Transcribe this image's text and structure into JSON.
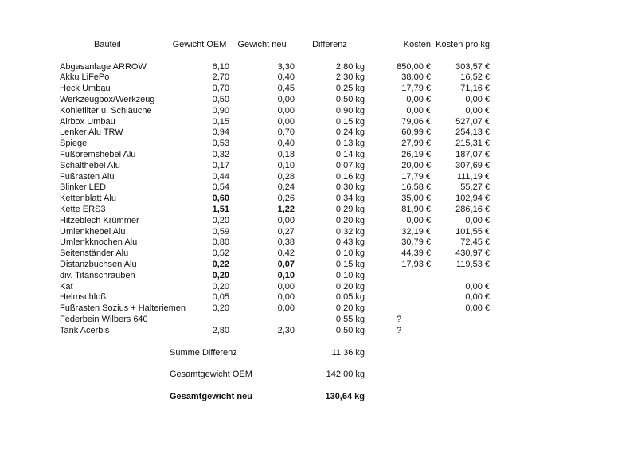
{
  "document": {
    "background": "#ffffff",
    "text_color": "#111111"
  },
  "table": {
    "headers": {
      "bauteil": "Bauteil",
      "gewicht_oem": "Gewicht OEM",
      "gewicht_neu": "Gewicht neu",
      "differenz": "Differenz",
      "kosten": "Kosten",
      "kosten_pro_kg": "Kosten pro kg"
    },
    "columns": [
      "bauteil",
      "gewicht_oem",
      "gewicht_neu",
      "differenz",
      "kosten",
      "kosten_pro_kg"
    ],
    "rows": [
      {
        "bauteil": "Abgasanlage ARROW",
        "gewicht_oem": "6,10",
        "gewicht_neu": "3,30",
        "differenz": "2,80 kg",
        "kosten": "850,00 €",
        "kosten_pro_kg": "303,57 €"
      },
      {
        "bauteil": "Akku LiFePo",
        "gewicht_oem": "2,70",
        "gewicht_neu": "0,40",
        "differenz": "2,30 kg",
        "kosten": "38,00 €",
        "kosten_pro_kg": "16,52 €"
      },
      {
        "bauteil": "Heck Umbau",
        "gewicht_oem": "0,70",
        "gewicht_neu": "0,45",
        "differenz": "0,25 kg",
        "kosten": "17,79 €",
        "kosten_pro_kg": "71,16 €"
      },
      {
        "bauteil": "Werkzeugbox/Werkzeug",
        "gewicht_oem": "0,50",
        "gewicht_neu": "0,00",
        "differenz": "0,50 kg",
        "kosten": "0,00 €",
        "kosten_pro_kg": "0,00 €"
      },
      {
        "bauteil": "Kohlefilter u. Schläuche",
        "gewicht_oem": "0,90",
        "gewicht_neu": "0,00",
        "differenz": "0,90 kg",
        "kosten": "0,00 €",
        "kosten_pro_kg": "0,00 €"
      },
      {
        "bauteil": "Airbox Umbau",
        "gewicht_oem": "0,15",
        "gewicht_neu": "0,00",
        "differenz": "0,15 kg",
        "kosten": "79,06 €",
        "kosten_pro_kg": "527,07 €"
      },
      {
        "bauteil": "Lenker Alu TRW",
        "gewicht_oem": "0,94",
        "gewicht_neu": "0,70",
        "differenz": "0,24 kg",
        "kosten": "60,99 €",
        "kosten_pro_kg": "254,13 €"
      },
      {
        "bauteil": "Spiegel",
        "gewicht_oem": "0,53",
        "gewicht_neu": "0,40",
        "differenz": "0,13 kg",
        "kosten": "27,99 €",
        "kosten_pro_kg": "215,31 €"
      },
      {
        "bauteil": "Fußbremshebel Alu",
        "gewicht_oem": "0,32",
        "gewicht_neu": "0,18",
        "differenz": "0,14 kg",
        "kosten": "26,19 €",
        "kosten_pro_kg": "187,07 €"
      },
      {
        "bauteil": "Schalthebel Alu",
        "gewicht_oem": "0,17",
        "gewicht_neu": "0,10",
        "differenz": "0,07 kg",
        "kosten": "20,00 €",
        "kosten_pro_kg": "307,69 €"
      },
      {
        "bauteil": "Fußrasten Alu",
        "gewicht_oem": "0,44",
        "gewicht_neu": "0,28",
        "differenz": "0,16 kg",
        "kosten": "17,79 €",
        "kosten_pro_kg": "111,19 €"
      },
      {
        "bauteil": "Blinker LED",
        "gewicht_oem": "0,54",
        "gewicht_neu": "0,24",
        "differenz": "0,30 kg",
        "kosten": "16,58 €",
        "kosten_pro_kg": "55,27 €"
      },
      {
        "bauteil": "Kettenblatt Alu",
        "gewicht_oem": "0,60",
        "gewicht_neu": "0,26",
        "differenz": "0,34 kg",
        "kosten": "35,00 €",
        "kosten_pro_kg": "102,94 €",
        "bold": [
          "gewicht_oem"
        ]
      },
      {
        "bauteil": "Kette ERS3",
        "gewicht_oem": "1,51",
        "gewicht_neu": "1,22",
        "differenz": "0,29 kg",
        "kosten": "81,90 €",
        "kosten_pro_kg": "286,16 €",
        "bold": [
          "gewicht_oem",
          "gewicht_neu"
        ]
      },
      {
        "bauteil": "Hitzeblech Krümmer",
        "gewicht_oem": "0,20",
        "gewicht_neu": "0,00",
        "differenz": "0,20 kg",
        "kosten": "0,00 €",
        "kosten_pro_kg": "0,00 €"
      },
      {
        "bauteil": "Umlenkhebel Alu",
        "gewicht_oem": "0,59",
        "gewicht_neu": "0,27",
        "differenz": "0,32 kg",
        "kosten": "32,19 €",
        "kosten_pro_kg": "101,55 €"
      },
      {
        "bauteil": "Umlenkknochen Alu",
        "gewicht_oem": "0,80",
        "gewicht_neu": "0,38",
        "differenz": "0,43 kg",
        "kosten": "30,79 €",
        "kosten_pro_kg": "72,45 €"
      },
      {
        "bauteil": "Seitenständer Alu",
        "gewicht_oem": "0,52",
        "gewicht_neu": "0,42",
        "differenz": "0,10 kg",
        "kosten": "44,39 €",
        "kosten_pro_kg": "430,97 €"
      },
      {
        "bauteil": "Distanzbuchsen Alu",
        "gewicht_oem": "0,22",
        "gewicht_neu": "0,07",
        "differenz": "0,15 kg",
        "kosten": "17,93 €",
        "kosten_pro_kg": "119,53 €",
        "bold": [
          "gewicht_oem",
          "gewicht_neu"
        ]
      },
      {
        "bauteil": "div. Titanschrauben",
        "gewicht_oem": "0,20",
        "gewicht_neu": "0,10",
        "differenz": "0,10 kg",
        "kosten": "",
        "kosten_pro_kg": "",
        "bold": [
          "gewicht_oem",
          "gewicht_neu"
        ]
      },
      {
        "bauteil": "Kat",
        "gewicht_oem": "0,20",
        "gewicht_neu": "0,00",
        "differenz": "0,20 kg",
        "kosten": "",
        "kosten_pro_kg": "0,00 €"
      },
      {
        "bauteil": "Helmschloß",
        "gewicht_oem": "0,05",
        "gewicht_neu": "0,00",
        "differenz": "0,05 kg",
        "kosten": "",
        "kosten_pro_kg": "0,00 €"
      },
      {
        "bauteil": "Fußrasten Sozius + Halteriemen",
        "gewicht_oem": "0,20",
        "gewicht_neu": "0,00",
        "differenz": "0,20 kg",
        "kosten": "",
        "kosten_pro_kg": "0,00 €"
      },
      {
        "bauteil": "Federbein Wilbers 640",
        "gewicht_oem": "",
        "gewicht_neu": "",
        "differenz": "0,55 kg",
        "kosten": "?",
        "kosten_pro_kg": ""
      },
      {
        "bauteil": "Tank Acerbis",
        "gewicht_oem": "2,80",
        "gewicht_neu": "2,30",
        "differenz": "0,50 kg",
        "kosten": "?",
        "kosten_pro_kg": ""
      }
    ],
    "summary": [
      {
        "label": "Summe Differenz",
        "value": "11,36 kg",
        "bold": false
      },
      {
        "label": "Gesamtgewicht OEM",
        "value": "142,00 kg",
        "bold": false
      },
      {
        "label": "Gesamtgewicht neu",
        "value": "130,64 kg",
        "bold": true
      }
    ]
  }
}
